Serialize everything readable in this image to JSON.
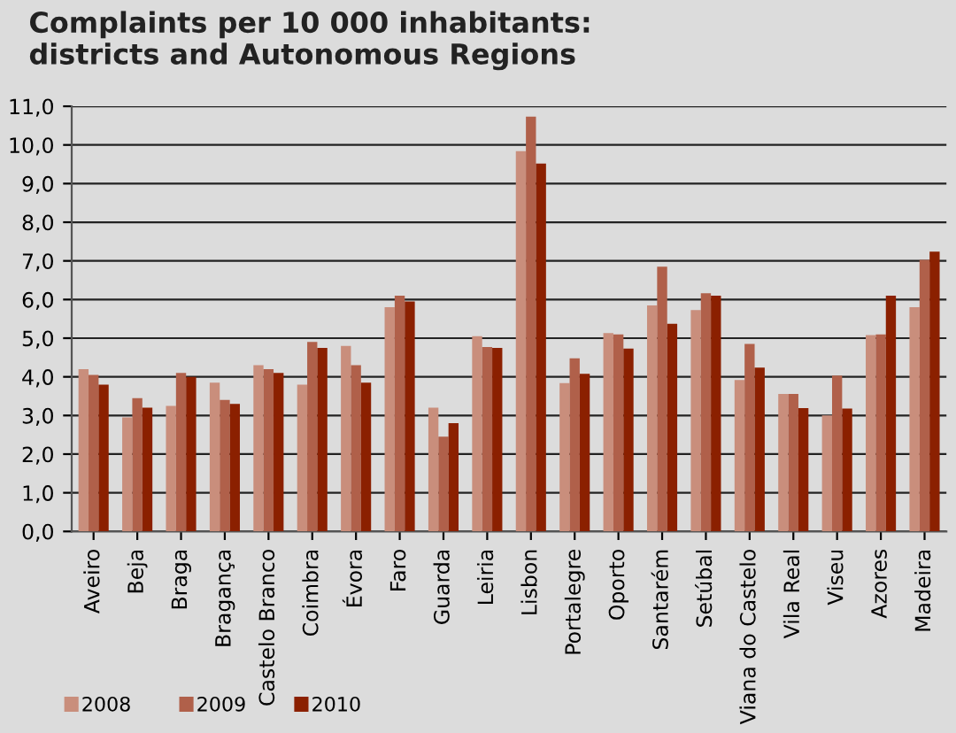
{
  "chart_data": {
    "type": "bar",
    "title": "Complaints per 10 000 inhabitants:\ndistricts and Autonomous Regions",
    "categories": [
      "Aveiro",
      "Beja",
      "Braga",
      "Bragança",
      "Castelo Branco",
      "Coimbra",
      "Évora",
      "Faro",
      "Guarda",
      "Leiria",
      "Lisbon",
      "Portalegre",
      "Oporto",
      "Santarém",
      "Setúbal",
      "Viana do Castelo",
      "Vila Real",
      "Viseu",
      "Azores",
      "Madeira"
    ],
    "series": [
      {
        "name": "2008",
        "color": "#c98e7c",
        "values": [
          4.2,
          2.95,
          3.25,
          3.85,
          4.3,
          3.8,
          4.8,
          5.8,
          3.2,
          5.05,
          9.84,
          3.84,
          5.13,
          5.85,
          5.73,
          3.92,
          3.56,
          3.0,
          5.08,
          5.8
        ]
      },
      {
        "name": "2009",
        "color": "#b0604a",
        "values": [
          4.05,
          3.45,
          4.1,
          3.4,
          4.2,
          4.9,
          4.3,
          6.1,
          2.45,
          4.77,
          10.73,
          4.48,
          5.1,
          6.85,
          6.16,
          4.85,
          3.56,
          4.03,
          5.1,
          7.03
        ]
      },
      {
        "name": "2010",
        "color": "#8b2000",
        "values": [
          3.8,
          3.2,
          4.0,
          3.3,
          4.1,
          4.75,
          3.85,
          5.95,
          2.8,
          4.75,
          9.52,
          4.08,
          4.73,
          5.37,
          6.1,
          4.24,
          3.19,
          3.18,
          6.1,
          7.24
        ]
      }
    ],
    "ylim": [
      0,
      11
    ],
    "yticks": [
      {
        "value": 0,
        "label": "0,0"
      },
      {
        "value": 1,
        "label": "1,0"
      },
      {
        "value": 2,
        "label": "2,0"
      },
      {
        "value": 3,
        "label": "3,0"
      },
      {
        "value": 4,
        "label": "4,0"
      },
      {
        "value": 5,
        "label": "5,0"
      },
      {
        "value": 6,
        "label": "6,0"
      },
      {
        "value": 7,
        "label": "7,0"
      },
      {
        "value": 8,
        "label": "8,0"
      },
      {
        "value": 9,
        "label": "9,0"
      },
      {
        "value": 10,
        "label": "10,0"
      },
      {
        "value": 11,
        "label": "11,0"
      }
    ],
    "grid": "y",
    "legend": "bottom left"
  }
}
